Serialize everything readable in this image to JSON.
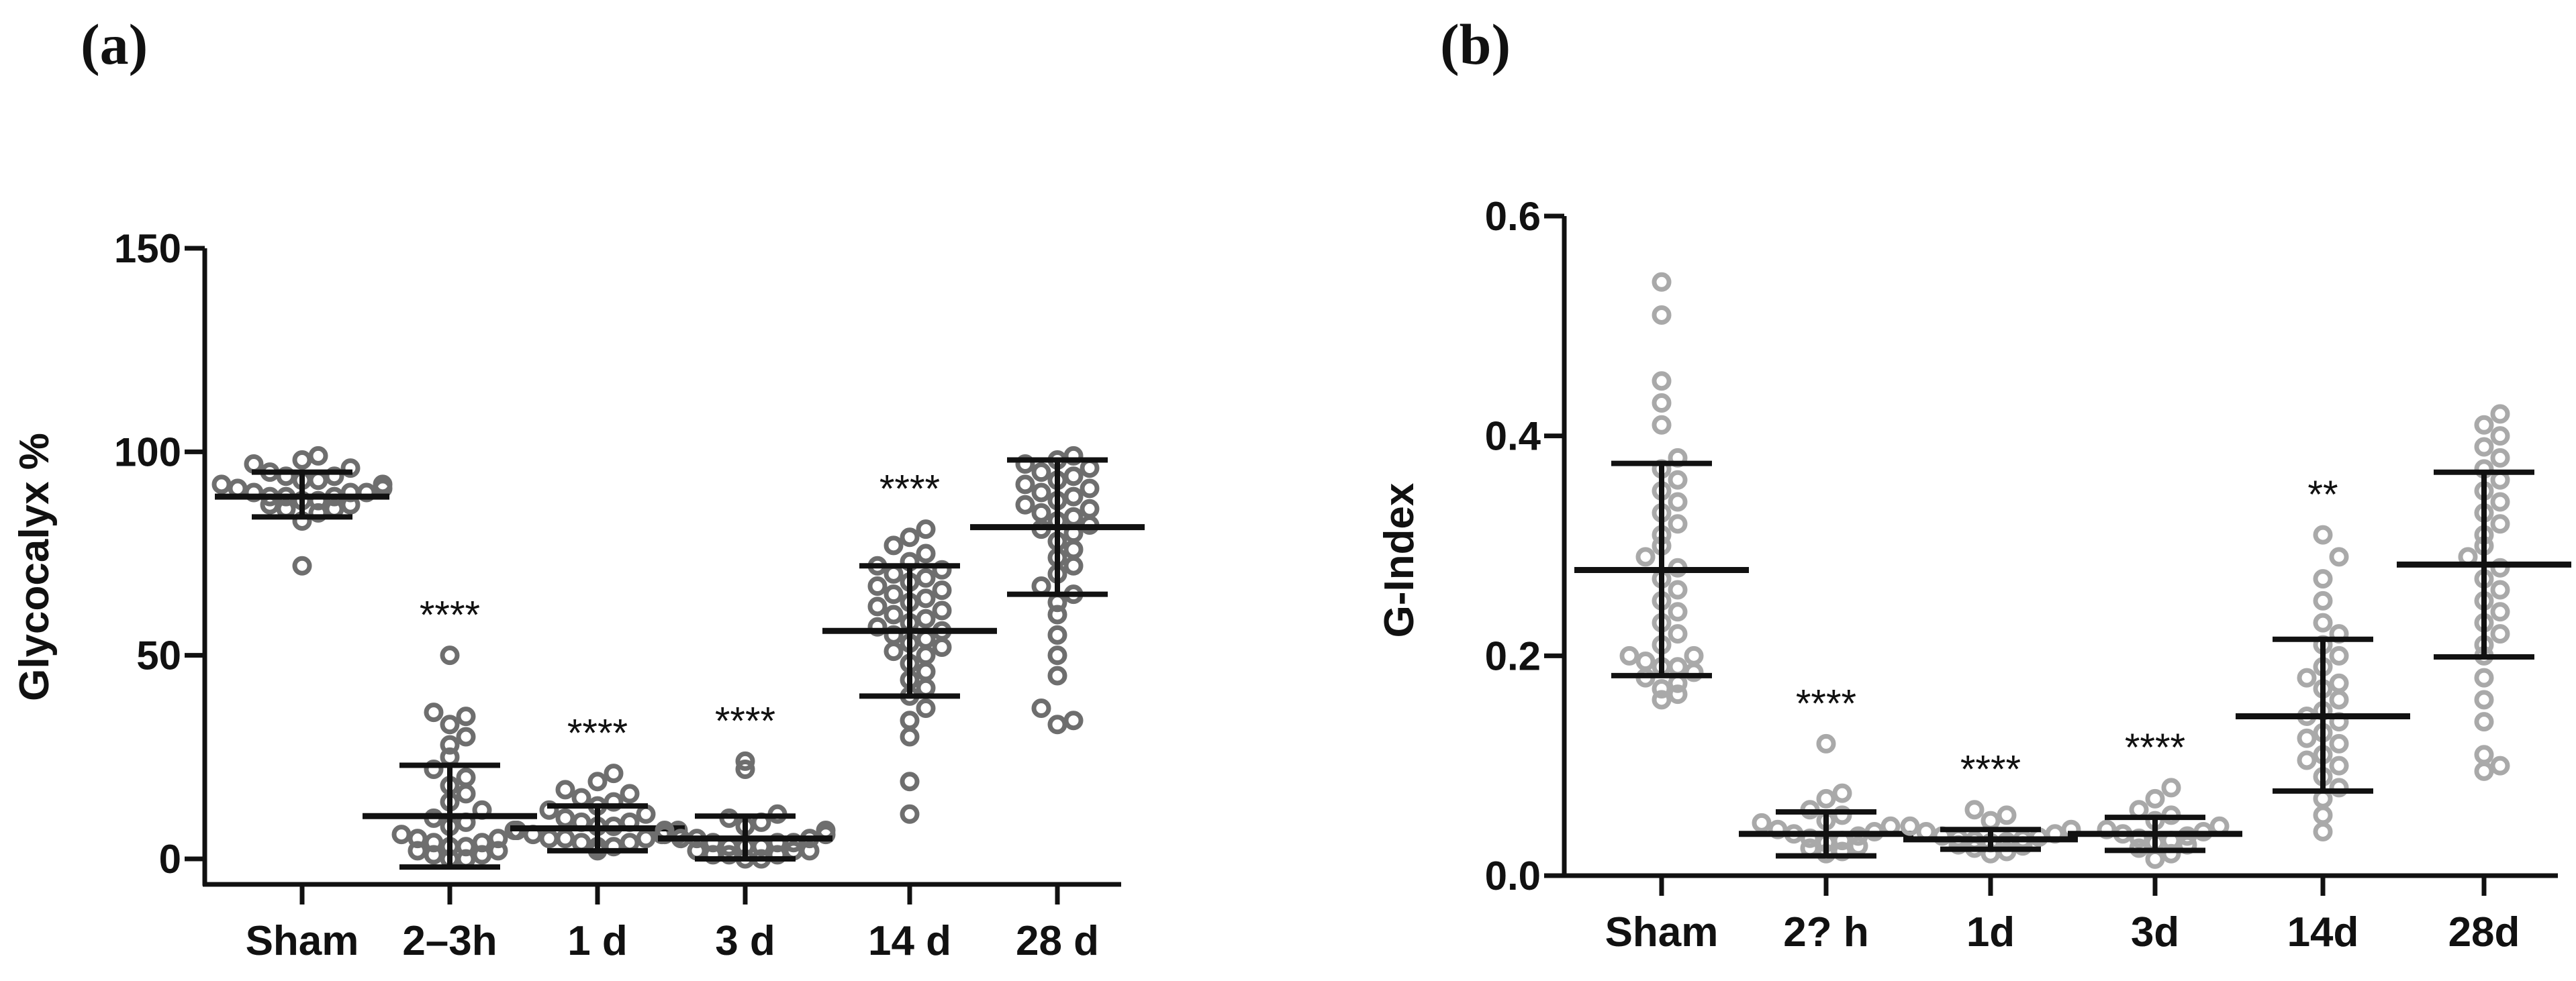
{
  "chart_data": [
    {
      "panel_label": "(a)",
      "type": "scatter",
      "ylabel": "Glycocalyx %",
      "ylim": [
        0,
        150
      ],
      "yticks": [
        0,
        50,
        100,
        150
      ],
      "categories": [
        "Sham",
        "2–3h",
        "1 d",
        "3 d",
        "14 d",
        "28 d"
      ],
      "points": [
        [
          72,
          83,
          85,
          86,
          86,
          87,
          87,
          88,
          88,
          89,
          89,
          89,
          90,
          90,
          90,
          91,
          91,
          92,
          92,
          93,
          93,
          94,
          94,
          95,
          96,
          97,
          98,
          99
        ],
        [
          0,
          0,
          1,
          1,
          2,
          2,
          3,
          3,
          4,
          4,
          5,
          5,
          6,
          7,
          8,
          9,
          10,
          12,
          14,
          16,
          18,
          20,
          22,
          25,
          28,
          30,
          33,
          35,
          36,
          50
        ],
        [
          2,
          3,
          3,
          4,
          4,
          5,
          5,
          5,
          6,
          6,
          6,
          7,
          7,
          7,
          8,
          8,
          9,
          9,
          10,
          11,
          12,
          13,
          14,
          15,
          16,
          17,
          19,
          21
        ],
        [
          0,
          0,
          1,
          1,
          1,
          2,
          2,
          2,
          3,
          3,
          3,
          4,
          4,
          4,
          5,
          5,
          5,
          6,
          6,
          7,
          7,
          8,
          9,
          10,
          11,
          22,
          24
        ],
        [
          11,
          19,
          30,
          34,
          37,
          40,
          42,
          44,
          46,
          48,
          50,
          51,
          52,
          53,
          54,
          55,
          56,
          57,
          58,
          59,
          60,
          61,
          62,
          63,
          64,
          65,
          66,
          67,
          68,
          69,
          70,
          71,
          72,
          73,
          75,
          77,
          79,
          81
        ],
        [
          33,
          34,
          37,
          45,
          50,
          55,
          60,
          63,
          65,
          67,
          70,
          72,
          74,
          76,
          78,
          80,
          81,
          82,
          83,
          84,
          85,
          86,
          87,
          88,
          89,
          90,
          91,
          92,
          93,
          94,
          95,
          96,
          97,
          98,
          99
        ]
      ],
      "mean": [
        89,
        10.5,
        7.5,
        5,
        56,
        81.5
      ],
      "sd_upper": [
        95,
        23,
        13,
        10.5,
        72,
        98
      ],
      "sd_lower": [
        84,
        -2,
        2,
        0,
        40,
        65
      ],
      "significance": [
        "",
        "****",
        "****",
        "****",
        "****",
        ""
      ],
      "point_color": "#6e6e6e"
    },
    {
      "panel_label": "(b)",
      "type": "scatter",
      "ylabel": "G-Index",
      "ylim": [
        0,
        0.6
      ],
      "yticks": [
        0.0,
        0.2,
        0.4,
        0.6
      ],
      "ytick_labels": [
        "0.0",
        "0.2",
        "0.4",
        "0.6"
      ],
      "categories": [
        "Sham",
        "2? h",
        "1d",
        "3d",
        "14d",
        "28d"
      ],
      "points": [
        [
          0.16,
          0.165,
          0.17,
          0.175,
          0.18,
          0.185,
          0.19,
          0.19,
          0.195,
          0.2,
          0.2,
          0.21,
          0.22,
          0.23,
          0.24,
          0.25,
          0.26,
          0.27,
          0.28,
          0.29,
          0.3,
          0.31,
          0.32,
          0.33,
          0.34,
          0.35,
          0.36,
          0.37,
          0.38,
          0.41,
          0.43,
          0.45,
          0.51,
          0.54
        ],
        [
          0.02,
          0.022,
          0.025,
          0.027,
          0.03,
          0.032,
          0.034,
          0.036,
          0.038,
          0.04,
          0.042,
          0.045,
          0.048,
          0.05,
          0.055,
          0.06,
          0.07,
          0.075,
          0.12
        ],
        [
          0.02,
          0.022,
          0.025,
          0.027,
          0.028,
          0.03,
          0.031,
          0.032,
          0.033,
          0.034,
          0.035,
          0.036,
          0.038,
          0.04,
          0.042,
          0.045,
          0.05,
          0.055,
          0.06
        ],
        [
          0.015,
          0.02,
          0.025,
          0.028,
          0.03,
          0.032,
          0.034,
          0.036,
          0.038,
          0.04,
          0.042,
          0.045,
          0.05,
          0.055,
          0.06,
          0.07,
          0.08
        ],
        [
          0.04,
          0.055,
          0.07,
          0.08,
          0.09,
          0.1,
          0.105,
          0.11,
          0.12,
          0.125,
          0.13,
          0.14,
          0.145,
          0.15,
          0.16,
          0.17,
          0.175,
          0.18,
          0.19,
          0.2,
          0.21,
          0.22,
          0.23,
          0.25,
          0.27,
          0.29,
          0.31
        ],
        [
          0.095,
          0.1,
          0.11,
          0.14,
          0.16,
          0.18,
          0.2,
          0.21,
          0.22,
          0.23,
          0.24,
          0.25,
          0.26,
          0.27,
          0.28,
          0.29,
          0.3,
          0.31,
          0.32,
          0.33,
          0.34,
          0.35,
          0.36,
          0.37,
          0.38,
          0.39,
          0.4,
          0.41,
          0.42
        ]
      ],
      "mean": [
        0.278,
        0.038,
        0.033,
        0.038,
        0.145,
        0.283
      ],
      "sd_upper": [
        0.375,
        0.058,
        0.042,
        0.053,
        0.215,
        0.367
      ],
      "sd_lower": [
        0.182,
        0.018,
        0.024,
        0.023,
        0.077,
        0.199
      ],
      "significance": [
        "",
        "****",
        "****",
        "****",
        "**",
        ""
      ],
      "point_color": "#a9a9a9"
    }
  ]
}
